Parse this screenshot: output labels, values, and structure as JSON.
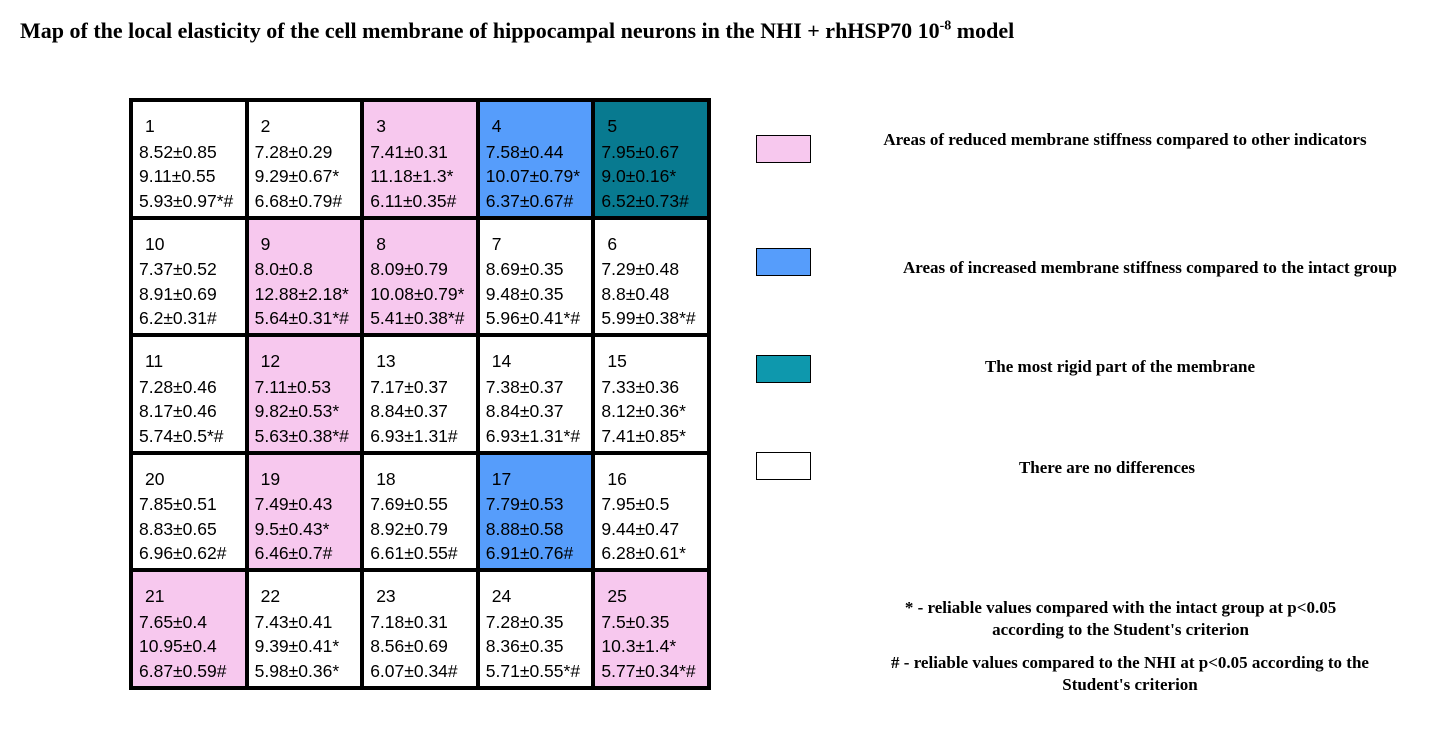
{
  "title": {
    "main": "Map of the local elasticity of the cell membrane of hippocampal neurons in the NHI  + rhHSP70 10",
    "superscript": "-8",
    "suffix": " model"
  },
  "colors": {
    "pink": "#f7c8ee",
    "blue": "#569dfb",
    "teal": "#087a90",
    "white": "#ffffff"
  },
  "cells": [
    {
      "num": "1",
      "l1": "8.52±0.85",
      "l2": "9.11±0.55",
      "l3": "5.93±0.97*#",
      "color": "white"
    },
    {
      "num": "2",
      "l1": "7.28±0.29",
      "l2": "9.29±0.67*",
      "l3": "6.68±0.79#",
      "color": "white"
    },
    {
      "num": "3",
      "l1": "7.41±0.31",
      "l2": "11.18±1.3*",
      "l3": "6.11±0.35#",
      "color": "pink"
    },
    {
      "num": "4",
      "l1": "7.58±0.44",
      "l2": "10.07±0.79*",
      "l3": "6.37±0.67#",
      "color": "blue"
    },
    {
      "num": "5",
      "l1": "7.95±0.67",
      "l2": "9.0±0.16*",
      "l3": "6.52±0.73#",
      "color": "teal"
    },
    {
      "num": "10",
      "l1": "7.37±0.52",
      "l2": "8.91±0.69",
      "l3": "6.2±0.31#",
      "color": "white"
    },
    {
      "num": "9",
      "l1": "8.0±0.8",
      "l2": "12.88±2.18*",
      "l3": "5.64±0.31*#",
      "color": "pink"
    },
    {
      "num": "8",
      "l1": "8.09±0.79",
      "l2": "10.08±0.79*",
      "l3": "5.41±0.38*#",
      "color": "pink"
    },
    {
      "num": "7",
      "l1": "8.69±0.35",
      "l2": "9.48±0.35",
      "l3": "5.96±0.41*#",
      "color": "white"
    },
    {
      "num": "6",
      "l1": "7.29±0.48",
      "l2": "8.8±0.48",
      "l3": "5.99±0.38*#",
      "color": "white"
    },
    {
      "num": "11",
      "l1": "7.28±0.46",
      "l2": "8.17±0.46",
      "l3": "5.74±0.5*#",
      "color": "white"
    },
    {
      "num": "12",
      "l1": "7.11±0.53",
      "l2": "9.82±0.53*",
      "l3": "5.63±0.38*#",
      "color": "pink"
    },
    {
      "num": "13",
      "l1": "7.17±0.37",
      "l2": "8.84±0.37",
      "l3": "6.93±1.31#",
      "color": "white"
    },
    {
      "num": "14",
      "l1": "7.38±0.37",
      "l2": "8.84±0.37",
      "l3": "6.93±1.31*#",
      "color": "white"
    },
    {
      "num": "15",
      "l1": "7.33±0.36",
      "l2": "8.12±0.36*",
      "l3": "7.41±0.85*",
      "color": "white"
    },
    {
      "num": "20",
      "l1": "7.85±0.51",
      "l2": "8.83±0.65",
      "l3": "6.96±0.62#",
      "color": "white"
    },
    {
      "num": "19",
      "l1": "7.49±0.43",
      "l2": "9.5±0.43*",
      "l3": "6.46±0.7#",
      "color": "pink"
    },
    {
      "num": "18",
      "l1": "7.69±0.55",
      "l2": "8.92±0.79",
      "l3": "6.61±0.55#",
      "color": "white"
    },
    {
      "num": "17",
      "l1": "7.79±0.53",
      "l2": "8.88±0.58",
      "l3": "6.91±0.76#",
      "color": "blue"
    },
    {
      "num": "16",
      "l1": "7.95±0.5",
      "l2": "9.44±0.47",
      "l3": "6.28±0.61*",
      "color": "white"
    },
    {
      "num": "21",
      "l1": "7.65±0.4",
      "l2": "10.95±0.4",
      "l3": "6.87±0.59#",
      "color": "pink"
    },
    {
      "num": "22",
      "l1": "7.43±0.41",
      "l2": "9.39±0.41*",
      "l3": "5.98±0.36*",
      "color": "white"
    },
    {
      "num": "23",
      "l1": "7.18±0.31",
      "l2": "8.56±0.69",
      "l3": "6.07±0.34#",
      "color": "white"
    },
    {
      "num": "24",
      "l1": "7.28±0.35",
      "l2": "8.36±0.35",
      "l3": "5.71±0.55*#",
      "color": "white"
    },
    {
      "num": "25",
      "l1": "7.5±0.35",
      "l2": "10.3±1.4*",
      "l3": "5.77±0.34*#",
      "color": "pink"
    }
  ],
  "legend": {
    "reduced": "Areas of reduced membrane stiffness compared to other indicators",
    "increased": "Areas of increased membrane stiffness compared to the intact group",
    "rigid": "The most rigid part of the membrane",
    "none": "There are no differences"
  },
  "notes": {
    "star": "* - reliable values compared with the intact group at p<0.05 according to the Student's criterion",
    "hash": "# - reliable values compared to the NHI at p<0.05 according to the Student's criterion"
  }
}
